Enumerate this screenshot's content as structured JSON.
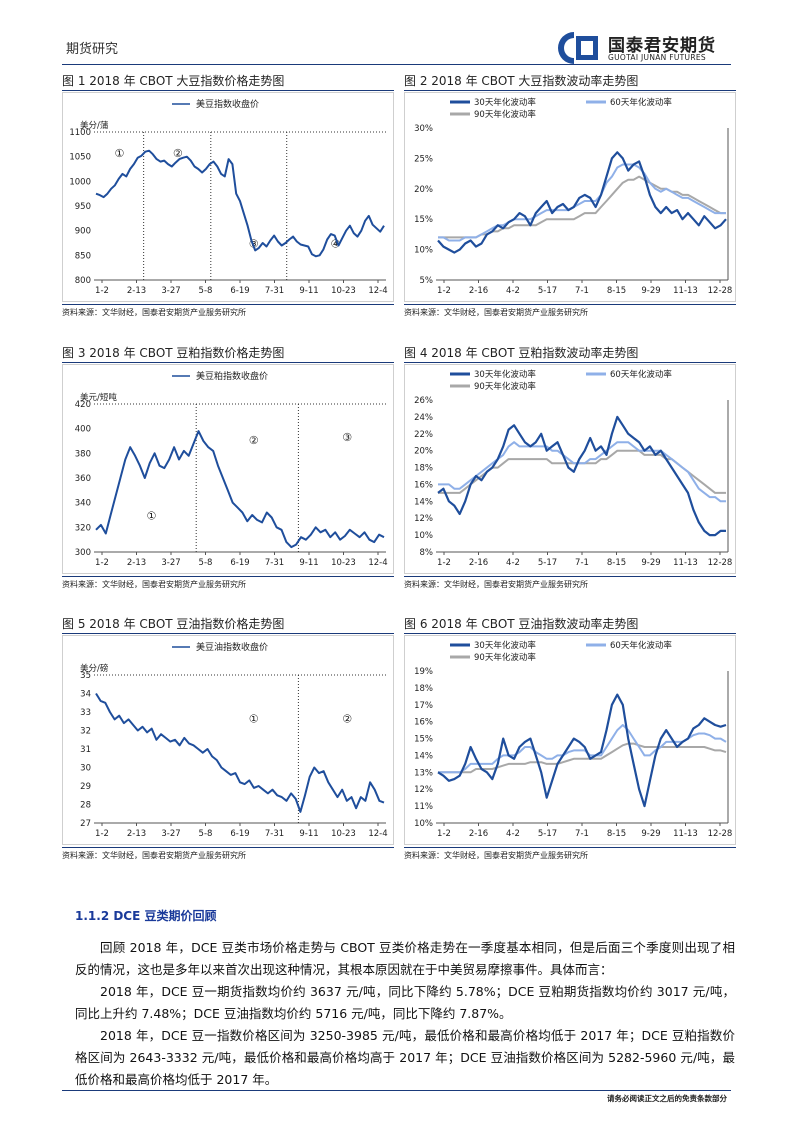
{
  "header": {
    "section": "期货研究",
    "logo_cn": "国泰君安期货",
    "logo_en": "GUOTAI JUNAN FUTURES"
  },
  "source_note": "资料来源：文华财经，国泰君安期货产业服务研究所",
  "charts": [
    {
      "title": "图 1 2018 年 CBOT 大豆指数价格走势图",
      "ylabel": "美分/蒲",
      "ylim": [
        800,
        1100
      ],
      "yticks": [
        800,
        850,
        900,
        950,
        1000,
        1050,
        1100
      ],
      "ytick_fmt": "int",
      "xticks": [
        "1-2",
        "2-13",
        "3-27",
        "5-8",
        "6-19",
        "7-31",
        "9-11",
        "10-23",
        "12-4"
      ],
      "dividers": [
        0.17,
        0.4,
        0.66
      ],
      "regions": [
        "①",
        "②",
        "③",
        "④"
      ],
      "region_pos": [
        [
          0.07,
          0.17
        ],
        [
          0.27,
          0.17
        ],
        [
          0.53,
          0.78
        ],
        [
          0.81,
          0.78
        ]
      ],
      "series": [
        {
          "name": "美豆指数收盘价",
          "color": "#1f4e9c",
          "width": 2,
          "values": [
            975,
            972,
            968,
            975,
            985,
            992,
            1005,
            1015,
            1010,
            1025,
            1035,
            1048,
            1052,
            1060,
            1062,
            1055,
            1045,
            1040,
            1042,
            1035,
            1030,
            1038,
            1045,
            1048,
            1050,
            1042,
            1030,
            1025,
            1018,
            1025,
            1035,
            1040,
            1030,
            1015,
            1010,
            1045,
            1035,
            975,
            960,
            935,
            910,
            880,
            860,
            865,
            875,
            868,
            880,
            890,
            878,
            870,
            875,
            882,
            888,
            878,
            872,
            870,
            868,
            852,
            848,
            850,
            862,
            882,
            893,
            890,
            870,
            885,
            900,
            910,
            895,
            888,
            900,
            920,
            930,
            912,
            905,
            898,
            910
          ]
        }
      ]
    },
    {
      "title": "图 2 2018 年 CBOT 大豆指数波动率走势图",
      "ylabel": "",
      "ylim": [
        5,
        30
      ],
      "yticks": [
        5,
        10,
        15,
        20,
        25,
        30
      ],
      "ytick_fmt": "pct",
      "xticks": [
        "1-2",
        "2-16",
        "4-2",
        "5-17",
        "7-1",
        "8-15",
        "9-29",
        "11-13",
        "12-28"
      ],
      "series": [
        {
          "name": "30天年化波动率",
          "color": "#1f4e9c",
          "width": 2.2,
          "values": [
            11.5,
            10.5,
            10,
            9.5,
            10,
            11,
            11.5,
            10.5,
            11,
            12.5,
            13,
            14,
            13.5,
            14.5,
            15,
            16,
            15.5,
            14,
            16,
            17,
            18,
            16,
            17,
            17.5,
            16.5,
            17,
            18.5,
            19,
            18.5,
            17,
            19,
            22,
            25,
            26,
            25,
            23,
            24,
            24.5,
            22,
            19,
            17,
            16,
            17,
            16,
            16.5,
            15,
            16,
            15,
            14,
            15.5,
            14.5,
            13.5,
            14,
            15
          ]
        },
        {
          "name": "60天年化波动率",
          "color": "#8fb0e8",
          "width": 2,
          "values": [
            12,
            12,
            11.5,
            11.5,
            11.5,
            12,
            12,
            12,
            12.5,
            13,
            13.5,
            14,
            14,
            14.5,
            15,
            15,
            15,
            15,
            15.5,
            16,
            16.5,
            16.5,
            16.5,
            16.5,
            16.5,
            17,
            17.5,
            18,
            18,
            18,
            19,
            21,
            22,
            23.5,
            24,
            24,
            24,
            23.5,
            22.5,
            21,
            20,
            19.5,
            20,
            19.5,
            19,
            18.5,
            18.5,
            18,
            17.5,
            17,
            16.5,
            16,
            16,
            16
          ]
        },
        {
          "name": "90天年化波动率",
          "color": "#a8a8a8",
          "width": 2,
          "values": [
            12,
            12,
            12,
            12,
            12,
            12,
            12,
            12,
            12.5,
            12.5,
            13,
            13,
            13.5,
            13.5,
            14,
            14,
            14,
            14,
            14,
            14.5,
            15,
            15,
            15,
            15,
            15,
            15,
            15.5,
            16,
            16,
            16,
            17,
            18,
            19,
            20,
            21,
            21.5,
            21.5,
            22,
            21.5,
            21,
            20.5,
            20,
            20,
            19.5,
            19.5,
            19,
            19,
            18.5,
            18,
            17.5,
            17,
            16.5,
            16,
            16
          ]
        }
      ]
    },
    {
      "title": "图 3 2018 年 CBOT 豆粕指数价格走势图",
      "ylabel": "美元/短吨",
      "ylim": [
        300,
        420
      ],
      "yticks": [
        300,
        320,
        340,
        360,
        380,
        400,
        420
      ],
      "ytick_fmt": "int",
      "xticks": [
        "1-2",
        "2-13",
        "3-27",
        "5-8",
        "6-19",
        "7-31",
        "9-11",
        "10-23",
        "12-4"
      ],
      "dividers": [
        0.35,
        0.7
      ],
      "regions": [
        "①",
        "②",
        "③"
      ],
      "region_pos": [
        [
          0.18,
          0.78
        ],
        [
          0.53,
          0.27
        ],
        [
          0.85,
          0.25
        ]
      ],
      "series": [
        {
          "name": "美豆粕指数收盘价",
          "color": "#1f4e9c",
          "width": 2,
          "values": [
            318,
            322,
            315,
            330,
            345,
            360,
            375,
            385,
            378,
            370,
            360,
            372,
            380,
            370,
            368,
            375,
            385,
            375,
            382,
            378,
            388,
            398,
            390,
            385,
            382,
            370,
            360,
            350,
            340,
            336,
            332,
            325,
            330,
            326,
            324,
            332,
            328,
            320,
            318,
            308,
            304,
            306,
            312,
            310,
            314,
            320,
            316,
            318,
            312,
            316,
            310,
            313,
            318,
            315,
            312,
            316,
            310,
            308,
            314,
            312
          ]
        }
      ]
    },
    {
      "title": "图 4 2018 年 CBOT 豆粕指数波动率走势图",
      "ylabel": "",
      "ylim": [
        8,
        26
      ],
      "yticks": [
        8,
        10,
        12,
        14,
        16,
        18,
        20,
        22,
        24,
        26
      ],
      "ytick_fmt": "pct",
      "xticks": [
        "1-2",
        "2-16",
        "4-2",
        "5-17",
        "7-1",
        "8-15",
        "9-29",
        "11-13",
        "12-28"
      ],
      "series": [
        {
          "name": "30天年化波动率",
          "color": "#1f4e9c",
          "width": 2.2,
          "values": [
            15,
            15.5,
            14,
            13.5,
            12.5,
            14,
            16,
            17,
            16.5,
            17.5,
            18,
            19,
            20.5,
            22.5,
            23,
            22,
            21,
            20.5,
            21,
            22,
            20,
            20.5,
            21,
            19.5,
            18,
            17.5,
            19,
            20,
            21.5,
            20,
            20.5,
            19.5,
            22,
            24,
            23,
            22,
            21.5,
            21,
            20,
            20.5,
            19.5,
            20,
            19,
            18,
            17,
            16,
            15,
            13,
            11.5,
            10.5,
            10,
            10,
            10.5,
            10.5
          ]
        },
        {
          "name": "60天年化波动率",
          "color": "#8fb0e8",
          "width": 2,
          "values": [
            16,
            16,
            16,
            15.5,
            15.5,
            16,
            16.5,
            17,
            17.5,
            18,
            18.5,
            19,
            19.5,
            20.5,
            21,
            20.5,
            20.5,
            20.5,
            20.5,
            20.5,
            20.5,
            20,
            20,
            19.5,
            19,
            18.5,
            18.5,
            18.5,
            19,
            19,
            19.5,
            20,
            20.5,
            21,
            21,
            21,
            20.5,
            20,
            20,
            20,
            20,
            20,
            19.5,
            19,
            18.5,
            18,
            17.5,
            16.5,
            15.5,
            15,
            14.5,
            14.5,
            14,
            14
          ]
        },
        {
          "name": "90天年化波动率",
          "color": "#a8a8a8",
          "width": 2,
          "values": [
            15,
            15,
            15,
            15,
            15,
            15.5,
            16,
            16.5,
            17,
            17.5,
            18,
            18,
            18.5,
            19,
            19,
            19,
            19,
            19,
            19,
            19,
            19,
            18.5,
            18.5,
            18.5,
            18.5,
            18.5,
            18.5,
            18.5,
            18.5,
            18.5,
            19,
            19,
            19.5,
            20,
            20,
            20,
            20,
            20,
            19.5,
            19.5,
            19.5,
            19.5,
            19,
            19,
            18.5,
            18,
            17.5,
            17,
            16.5,
            16,
            15.5,
            15,
            15,
            15
          ]
        }
      ]
    },
    {
      "title": "图 5 2018 年 CBOT 豆油指数价格走势图",
      "ylabel": "美分/磅",
      "ylim": [
        27,
        35
      ],
      "yticks": [
        27,
        28,
        29,
        30,
        31,
        32,
        33,
        34,
        35
      ],
      "ytick_fmt": "int",
      "xticks": [
        "1-2",
        "2-13",
        "3-27",
        "5-8",
        "6-19",
        "7-31",
        "9-11",
        "10-23",
        "12-4"
      ],
      "dividers": [
        0.7
      ],
      "regions": [
        "①",
        "②"
      ],
      "region_pos": [
        [
          0.53,
          0.32
        ],
        [
          0.85,
          0.32
        ]
      ],
      "series": [
        {
          "name": "美豆油指数收盘价",
          "color": "#1f4e9c",
          "width": 2,
          "values": [
            34,
            33.6,
            33.5,
            33,
            32.6,
            32.8,
            32.4,
            32.6,
            32.3,
            32,
            32.2,
            31.9,
            32.1,
            31.5,
            31.8,
            31.6,
            31.4,
            31.5,
            31.2,
            31.6,
            31.3,
            31.2,
            31,
            30.8,
            31,
            30.6,
            30.4,
            30,
            29.8,
            29.6,
            29.7,
            29.2,
            29.1,
            29.3,
            28.9,
            29,
            28.8,
            28.6,
            28.8,
            28.5,
            28.4,
            28.2,
            28.6,
            28.3,
            27.6,
            28.5,
            29.5,
            30,
            29.7,
            29.8,
            29.2,
            28.8,
            28.4,
            28.8,
            28.2,
            28.4,
            27.8,
            28.4,
            28.2,
            29.2,
            28.8,
            28.2,
            28.1
          ]
        }
      ]
    },
    {
      "title": "图 6 2018 年 CBOT 豆油指数波动率走势图",
      "ylabel": "",
      "ylim": [
        10,
        19
      ],
      "yticks": [
        10,
        11,
        12,
        13,
        14,
        15,
        16,
        17,
        18,
        19
      ],
      "ytick_fmt": "pct",
      "xticks": [
        "1-2",
        "2-16",
        "4-2",
        "5-17",
        "7-1",
        "8-15",
        "9-29",
        "11-13",
        "12-28"
      ],
      "series": [
        {
          "name": "30天年化波动率",
          "color": "#1f4e9c",
          "width": 2.2,
          "values": [
            13,
            12.8,
            12.5,
            12.6,
            12.8,
            13.5,
            14.5,
            13.8,
            13.2,
            13,
            12.6,
            13.5,
            15,
            14,
            13.8,
            14.5,
            14.8,
            15,
            14,
            13,
            11.5,
            12.5,
            13.5,
            14,
            14.5,
            15,
            14.8,
            14.5,
            13.8,
            14,
            14.2,
            15.5,
            17,
            17.6,
            17,
            15,
            13.5,
            12,
            11,
            12.5,
            14,
            15,
            15.5,
            15,
            14.5,
            14.8,
            15,
            15.6,
            15.8,
            16.2,
            16,
            15.8,
            15.7,
            15.8
          ]
        },
        {
          "name": "60天年化波动率",
          "color": "#8fb0e8",
          "width": 2,
          "values": [
            13,
            13,
            13,
            13,
            13,
            13.2,
            13.5,
            13.5,
            13.5,
            13.5,
            13.5,
            13.8,
            14,
            14,
            14,
            14.2,
            14.5,
            14.5,
            14.2,
            14,
            13.8,
            13.8,
            14,
            14,
            14.2,
            14.3,
            14.3,
            14.3,
            14,
            14,
            14,
            14.5,
            15,
            15.5,
            15.8,
            15.5,
            15,
            14.5,
            14,
            14,
            14.3,
            14.5,
            14.8,
            14.8,
            14.8,
            14.8,
            15,
            15.2,
            15.3,
            15.3,
            15.2,
            15,
            15,
            14.8
          ]
        },
        {
          "name": "90天年化波动率",
          "color": "#a8a8a8",
          "width": 2,
          "values": [
            13,
            13,
            13,
            13,
            13,
            13,
            13,
            13.2,
            13.2,
            13.2,
            13.2,
            13.3,
            13.4,
            13.5,
            13.5,
            13.5,
            13.5,
            13.6,
            13.6,
            13.6,
            13.5,
            13.5,
            13.5,
            13.6,
            13.7,
            13.8,
            13.8,
            13.8,
            13.8,
            13.8,
            13.8,
            14,
            14.2,
            14.4,
            14.6,
            14.7,
            14.7,
            14.6,
            14.5,
            14.5,
            14.5,
            14.5,
            14.5,
            14.5,
            14.5,
            14.5,
            14.5,
            14.5,
            14.5,
            14.5,
            14.4,
            14.3,
            14.3,
            14.2
          ]
        }
      ]
    }
  ],
  "section": {
    "heading": "1.1.2  DCE 豆类期价回顾",
    "p1": "回顾 2018 年，DCE 豆类市场价格走势与 CBOT 豆类价格走势在一季度基本相同，但是后面三个季度则出现了相反的情况，这也是多年以来首次出现这种情况，其根本原因就在于中美贸易摩擦事件。具体而言：",
    "p2": "2018 年，DCE 豆一期货指数均价约 3637 元/吨，同比下降约 5.78%；DCE 豆粕期货指数均价约 3017 元/吨，同比上升约 7.48%；DCE 豆油指数均价约 5716 元/吨，同比下降约 7.87%。",
    "p3": "2018 年，DCE 豆一指数价格区间为 3250-3985 元/吨，最低价格和最高价格均低于 2017 年；DCE 豆粕指数价格区间为 2643-3332 元/吨，最低价格和最高价格均高于 2017 年；DCE 豆油指数价格区间为 5282-5960 元/吨，最低价格和最高价格均低于 2017 年。"
  },
  "footer": {
    "disclaimer": "请务必阅读正文之后的免责条款部分"
  }
}
